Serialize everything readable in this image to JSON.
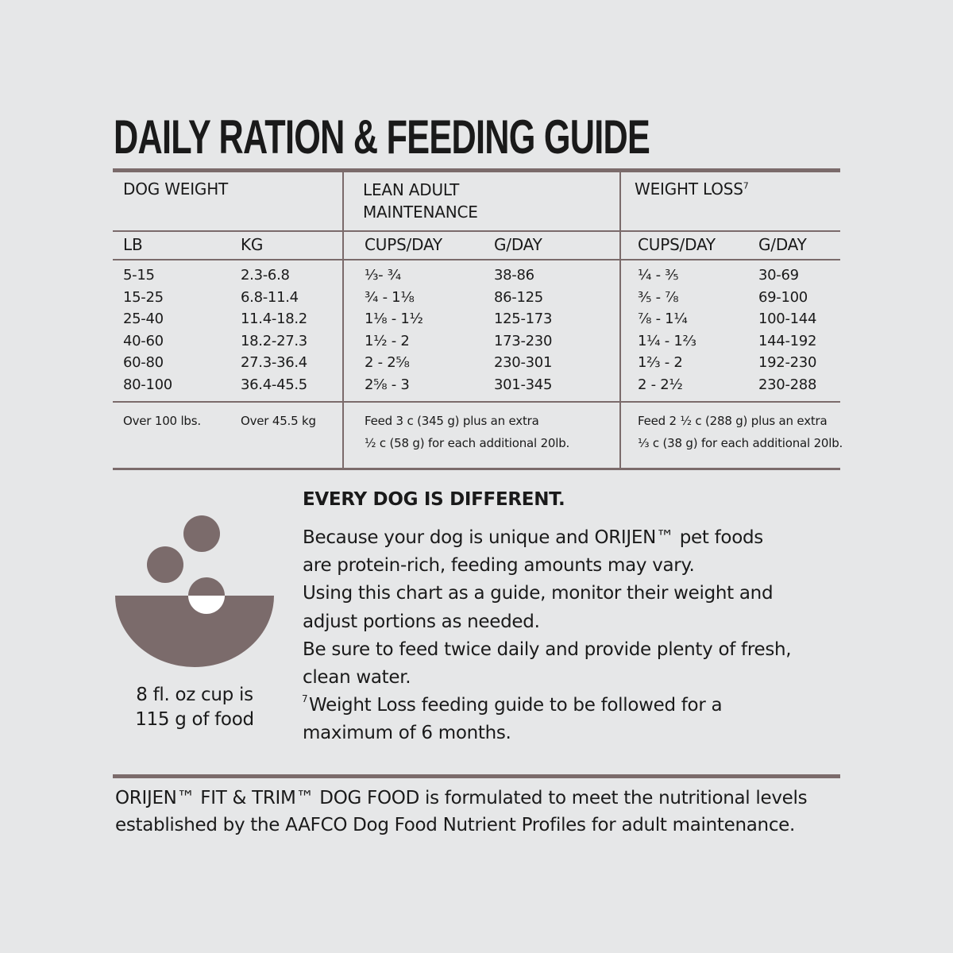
{
  "title": "DAILY RATION & FEEDING GUIDE",
  "table": {
    "groups": [
      {
        "label": "DOG WEIGHT"
      },
      {
        "label": "LEAN ADULT MAINTENANCE"
      },
      {
        "label": "WEIGHT LOSS",
        "footnote_mark": "7"
      }
    ],
    "columns": [
      "LB",
      "KG",
      "CUPS/DAY",
      "G/DAY",
      "CUPS/DAY",
      "G/DAY"
    ],
    "rows": [
      [
        "5-15",
        "2.3-6.8",
        "⅓- ¾",
        "38-86",
        "¼ - ⅗",
        "30-69"
      ],
      [
        "15-25",
        "6.8-11.4",
        "¾ - 1⅛",
        "86-125",
        "⅗ - ⅞",
        "69-100"
      ],
      [
        "25-40",
        "11.4-18.2",
        "1⅛ - 1½",
        "125-173",
        "⅞ - 1¼",
        "100-144"
      ],
      [
        "40-60",
        "18.2-27.3",
        "1½ - 2",
        "173-230",
        "1¼ - 1⅔",
        "144-192"
      ],
      [
        "60-80",
        "27.3-36.4",
        "2 - 2⅝",
        "230-301",
        "1⅔ - 2",
        "192-230"
      ],
      [
        "80-100",
        "36.4-45.5",
        "2⅝ - 3",
        "301-345",
        "2 - 2½",
        "230-288"
      ]
    ],
    "over_row": {
      "lb": "Over 100 lbs.",
      "kg": "Over 45.5 kg",
      "maintenance": [
        "Feed 3 c (345 g) plus an extra",
        "½ c (58 g) for each additional 20lb."
      ],
      "weight_loss": [
        "Feed 2 ½ c (288 g) plus an extra",
        "⅓ c (38 g) for each additional 20lb."
      ]
    }
  },
  "note": {
    "heading": "EVERY DOG IS DIFFERENT.",
    "lines": [
      "Because your dog is unique and ORIJEN™ pet foods",
      "are protein-rich, feeding amounts may vary.",
      "Using this chart as a guide, monitor their weight and",
      "adjust portions as needed.",
      "Be sure to feed twice daily and provide plenty of fresh,",
      "clean water."
    ],
    "footnote": {
      "mark": "7",
      "lines": [
        "Weight Loss feeding guide to be followed for a",
        "maximum of 6 months."
      ]
    },
    "cup_caption": [
      "8 fl. oz cup is",
      "115 g of food"
    ]
  },
  "footer": [
    "ORIJEN™ FIT & TRIM™ DOG FOOD is formulated to meet the nutritional levels",
    "established by the AAFCO Dog Food Nutrient Profiles for adult maintenance."
  ]
}
